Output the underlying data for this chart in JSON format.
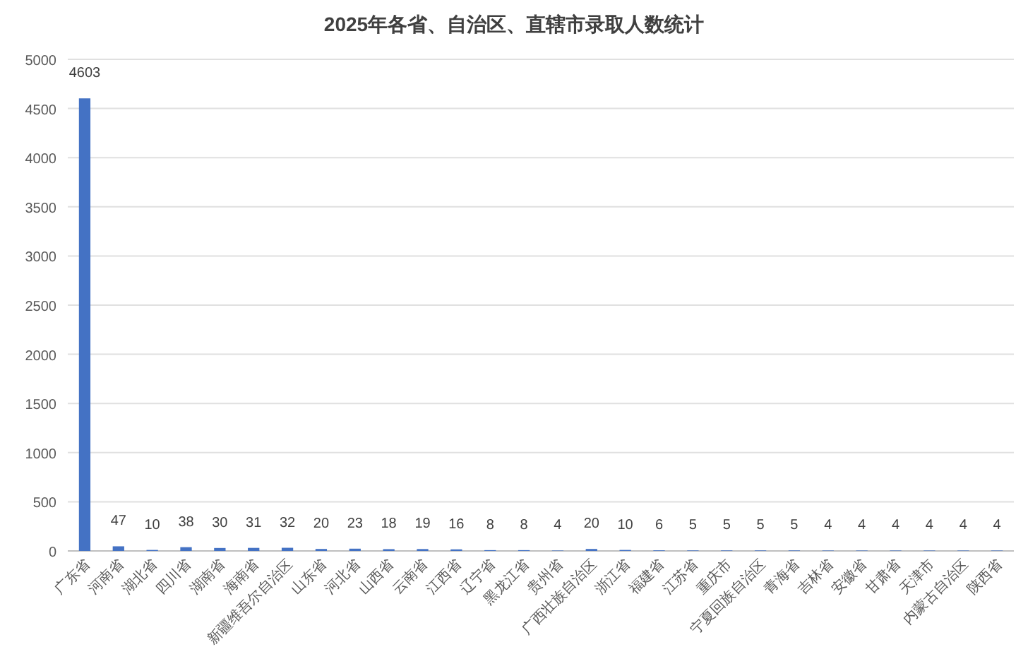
{
  "chart_data": {
    "type": "bar",
    "title": "2025年各省、自治区、直辖市录取人数统计",
    "categories": [
      "广东省",
      "河南省",
      "湖北省",
      "四川省",
      "湖南省",
      "海南省",
      "新疆维吾尔自治区",
      "山东省",
      "河北省",
      "山西省",
      "云南省",
      "江西省",
      "辽宁省",
      "黑龙江省",
      "贵州省",
      "广西壮族自治区",
      "浙江省",
      "福建省",
      "江苏省",
      "重庆市",
      "宁夏回族自治区",
      "青海省",
      "吉林省",
      "安徽省",
      "甘肃省",
      "天津市",
      "内蒙古自治区",
      "陕西省"
    ],
    "values": [
      4603,
      47,
      10,
      38,
      30,
      31,
      32,
      20,
      23,
      18,
      19,
      16,
      8,
      8,
      4,
      20,
      10,
      6,
      5,
      5,
      5,
      5,
      4,
      4,
      4,
      4,
      4,
      4
    ],
    "color": "#4472c4",
    "ylim": [
      0,
      5000
    ],
    "yticks": [
      0,
      500,
      1000,
      1500,
      2000,
      2500,
      3000,
      3500,
      4000,
      4500,
      5000
    ],
    "grid": "y",
    "data_labels": true
  }
}
